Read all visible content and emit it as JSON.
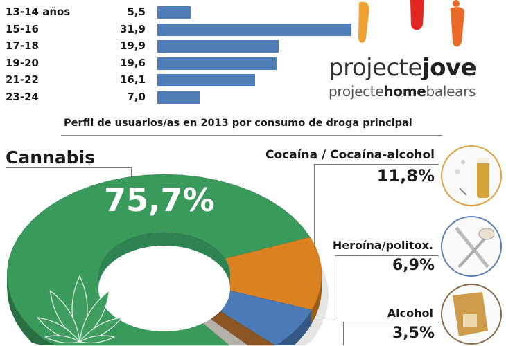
{
  "chart_data": [
    {
      "type": "bar",
      "orientation": "horizontal",
      "categories": [
        "13-14 años",
        "15-16",
        "17-18",
        "19-20",
        "21-22",
        "23-24"
      ],
      "values": [
        5.5,
        31.9,
        19.9,
        19.6,
        16.1,
        7.0
      ],
      "value_labels": [
        "5,5",
        "31,9",
        "19,9",
        "19,6",
        "16,1",
        "7,0"
      ],
      "color": "#4f7db8"
    },
    {
      "type": "pie",
      "variant": "donut-3d",
      "title": "Perfil de usuarios/as en 2013 por consumo de droga principal",
      "slices": [
        {
          "label": "Cannabis",
          "value": 75.7,
          "value_label": "75,7%",
          "color": "#3a9a5c"
        },
        {
          "label": "Cocaína / Cocaína-alcohol",
          "value": 11.8,
          "value_label": "11,8%",
          "color": "#d9821f"
        },
        {
          "label": "Heroína/politox.",
          "value": 6.9,
          "value_label": "6,9%",
          "color": "#4a7bb7"
        },
        {
          "label": "Alcohol",
          "value": 3.5,
          "value_label": "3,5%",
          "color": "#8b5524"
        },
        {
          "label": "",
          "value": 2.1,
          "value_label": "",
          "color": "#b5b0a8"
        }
      ]
    }
  ],
  "logo": {
    "line1_light": "projecte",
    "line1_bold": "jove",
    "line2_a": "projecte",
    "line2_b": "home",
    "line2_c": "balears"
  },
  "circle_colors": {
    "cocaine": "#e0a040",
    "heroin": "#5b7fb0",
    "alcohol": "#8b6a4a"
  }
}
